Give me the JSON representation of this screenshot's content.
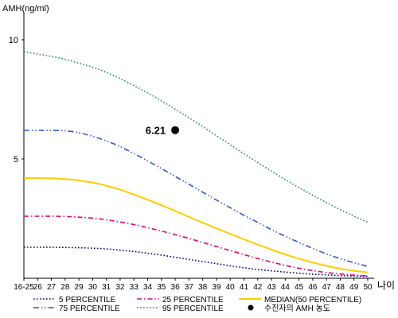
{
  "chart_data": {
    "type": "line",
    "title": "",
    "ylabel": "AMH(ng/ml)",
    "xlabel": "나이",
    "ylim": [
      0,
      11
    ],
    "yticks": [
      5,
      10
    ],
    "grid": false,
    "legend_position": "bottom",
    "categories": [
      "16-25",
      "26",
      "27",
      "28",
      "29",
      "30",
      "31",
      "32",
      "33",
      "34",
      "35",
      "36",
      "37",
      "38",
      "39",
      "40",
      "41",
      "42",
      "43",
      "44",
      "45",
      "46",
      "47",
      "48",
      "49",
      "50"
    ],
    "series": [
      {
        "name": "5 PERCENTILE",
        "color": "#000080",
        "dash": "dot",
        "values": [
          1.3,
          1.3,
          1.3,
          1.29,
          1.28,
          1.26,
          1.23,
          1.18,
          1.12,
          1.05,
          0.97,
          0.88,
          0.79,
          0.7,
          0.61,
          0.52,
          0.44,
          0.37,
          0.31,
          0.26,
          0.21,
          0.17,
          0.14,
          0.11,
          0.09,
          0.08
        ]
      },
      {
        "name": "25 PERCENTILE",
        "color": "#e0007f",
        "dash": "dashdot",
        "values": [
          2.6,
          2.6,
          2.6,
          2.59,
          2.56,
          2.52,
          2.45,
          2.36,
          2.25,
          2.12,
          1.98,
          1.83,
          1.67,
          1.5,
          1.33,
          1.16,
          0.99,
          0.83,
          0.68,
          0.54,
          0.42,
          0.32,
          0.24,
          0.18,
          0.13,
          0.1
        ]
      },
      {
        "name": "MEDIAN(50 PERCENTILE)",
        "color": "#ffcc00",
        "dash": "solid",
        "values": [
          4.2,
          4.2,
          4.19,
          4.16,
          4.1,
          4.01,
          3.88,
          3.71,
          3.51,
          3.29,
          3.06,
          2.82,
          2.57,
          2.33,
          2.09,
          1.86,
          1.63,
          1.41,
          1.2,
          1.0,
          0.82,
          0.66,
          0.52,
          0.4,
          0.31,
          0.25
        ]
      },
      {
        "name": "75 PERCENTILE",
        "color": "#3355cc",
        "dash": "dashdotdot",
        "values": [
          6.2,
          6.2,
          6.2,
          6.18,
          6.1,
          5.95,
          5.76,
          5.52,
          5.23,
          4.92,
          4.6,
          4.27,
          3.94,
          3.61,
          3.28,
          2.96,
          2.64,
          2.34,
          2.04,
          1.76,
          1.5,
          1.25,
          1.02,
          0.82,
          0.65,
          0.5
        ]
      },
      {
        "name": "95 PERCENTILE",
        "color": "#2e8b57",
        "dash": "dot",
        "values": [
          9.5,
          9.4,
          9.3,
          9.18,
          9.02,
          8.85,
          8.63,
          8.37,
          8.08,
          7.77,
          7.44,
          7.09,
          6.73,
          6.36,
          5.98,
          5.6,
          5.22,
          4.85,
          4.49,
          4.14,
          3.8,
          3.48,
          3.17,
          2.88,
          2.6,
          2.35
        ]
      }
    ],
    "markers": [
      {
        "name": "수진자의 AMH 농도",
        "category": "36",
        "value": 6.21,
        "label": "6.21",
        "color": "#000000"
      }
    ]
  },
  "legend": {
    "items": [
      {
        "name": "5 PERCENTILE",
        "color": "#000080",
        "dash": "dot",
        "kind": "line"
      },
      {
        "name": "25 PERCENTILE",
        "color": "#e0007f",
        "dash": "dashdot",
        "kind": "line"
      },
      {
        "name": "MEDIAN(50 PERCENTILE)",
        "color": "#ffcc00",
        "dash": "solid",
        "kind": "line"
      },
      {
        "name": "75 PERCENTILE",
        "color": "#3355cc",
        "dash": "dashdotdot",
        "kind": "line"
      },
      {
        "name": "95 PERCENTILE",
        "color": "#2e8b57",
        "dash": "dot",
        "kind": "line"
      },
      {
        "name": "수진자의 AMH 농도",
        "color": "#000000",
        "kind": "dot"
      }
    ]
  }
}
